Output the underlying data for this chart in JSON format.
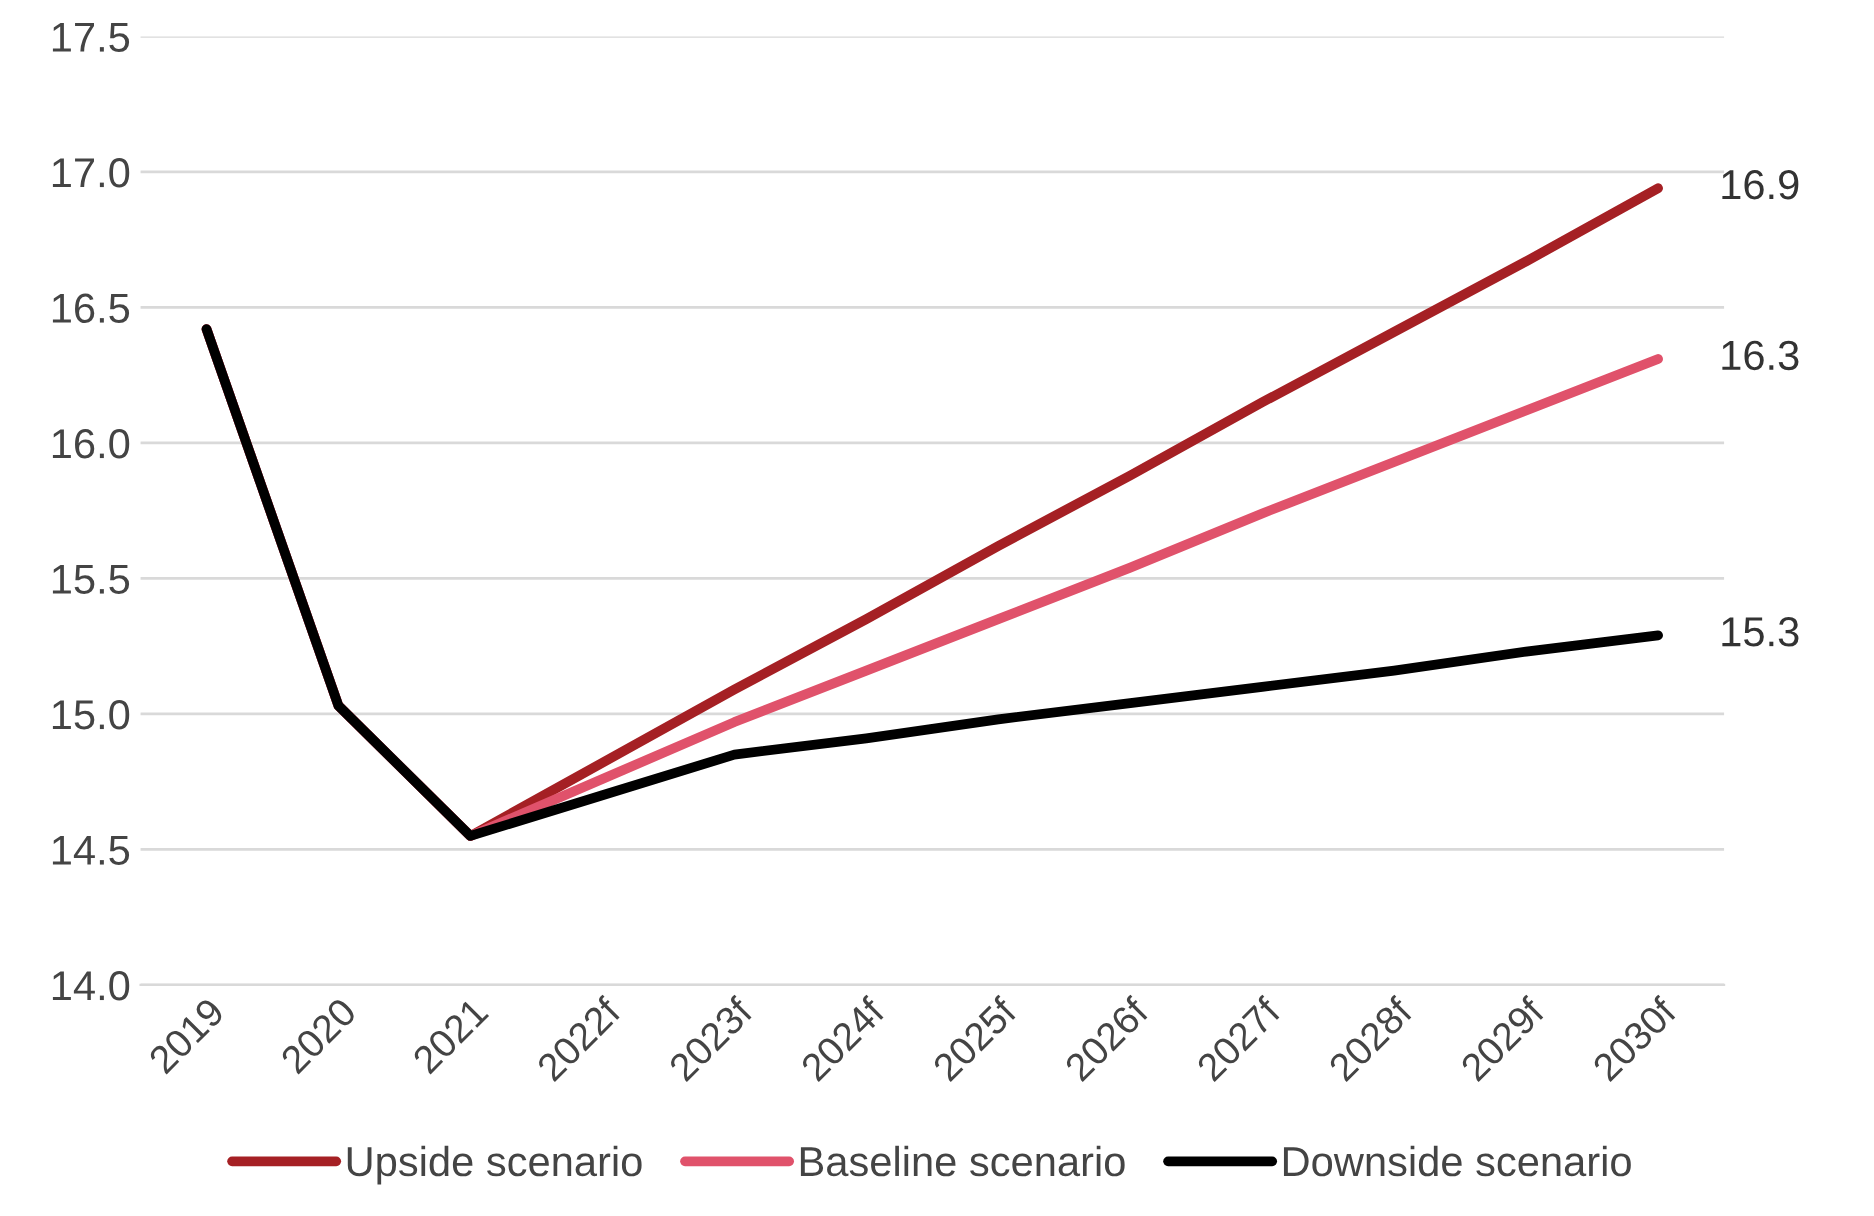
{
  "chart_data": {
    "type": "line",
    "categories": [
      "2019",
      "2020",
      "2021",
      "2022f",
      "2023f",
      "2024f",
      "2025f",
      "2026f",
      "2027f",
      "2028f",
      "2029f",
      "2030f"
    ],
    "series": [
      {
        "name": "Upside scenario",
        "color": "#a52024",
        "values": [
          16.42,
          15.03,
          14.55,
          14.82,
          15.09,
          15.35,
          15.62,
          15.88,
          16.15,
          16.41,
          16.67,
          16.94
        ],
        "value_labels": [
          null,
          null,
          null,
          null,
          null,
          null,
          null,
          null,
          null,
          null,
          null,
          "16.9"
        ]
      },
      {
        "name": "Baseline scenario",
        "color": "#e0526b",
        "values": [
          16.42,
          15.03,
          14.55,
          14.76,
          14.97,
          15.16,
          15.35,
          15.54,
          15.74,
          15.93,
          16.12,
          16.31
        ],
        "value_labels": [
          null,
          null,
          null,
          null,
          null,
          null,
          null,
          null,
          null,
          null,
          null,
          "16.3"
        ]
      },
      {
        "name": "Downside scenario",
        "color": "#000000",
        "values": [
          16.42,
          15.03,
          14.55,
          14.7,
          14.85,
          14.91,
          14.98,
          15.04,
          15.1,
          15.16,
          15.23,
          15.29
        ],
        "value_labels": [
          null,
          null,
          null,
          null,
          null,
          null,
          null,
          null,
          null,
          null,
          null,
          "15.3"
        ]
      }
    ],
    "ylim": [
      14.0,
      17.5
    ],
    "yticks": [
      {
        "value": 14.0,
        "label": "14.0"
      },
      {
        "value": 14.5,
        "label": "14.5"
      },
      {
        "value": 15.0,
        "label": "15.0"
      },
      {
        "value": 15.5,
        "label": "15.5"
      },
      {
        "value": 16.0,
        "label": "16.0"
      },
      {
        "value": 16.5,
        "label": "16.5"
      },
      {
        "value": 17.0,
        "label": "17.0"
      },
      {
        "value": 17.5,
        "label": "17.5"
      }
    ],
    "grid": "y",
    "legend": "bottom",
    "marker": "none",
    "line_style": "solid"
  }
}
